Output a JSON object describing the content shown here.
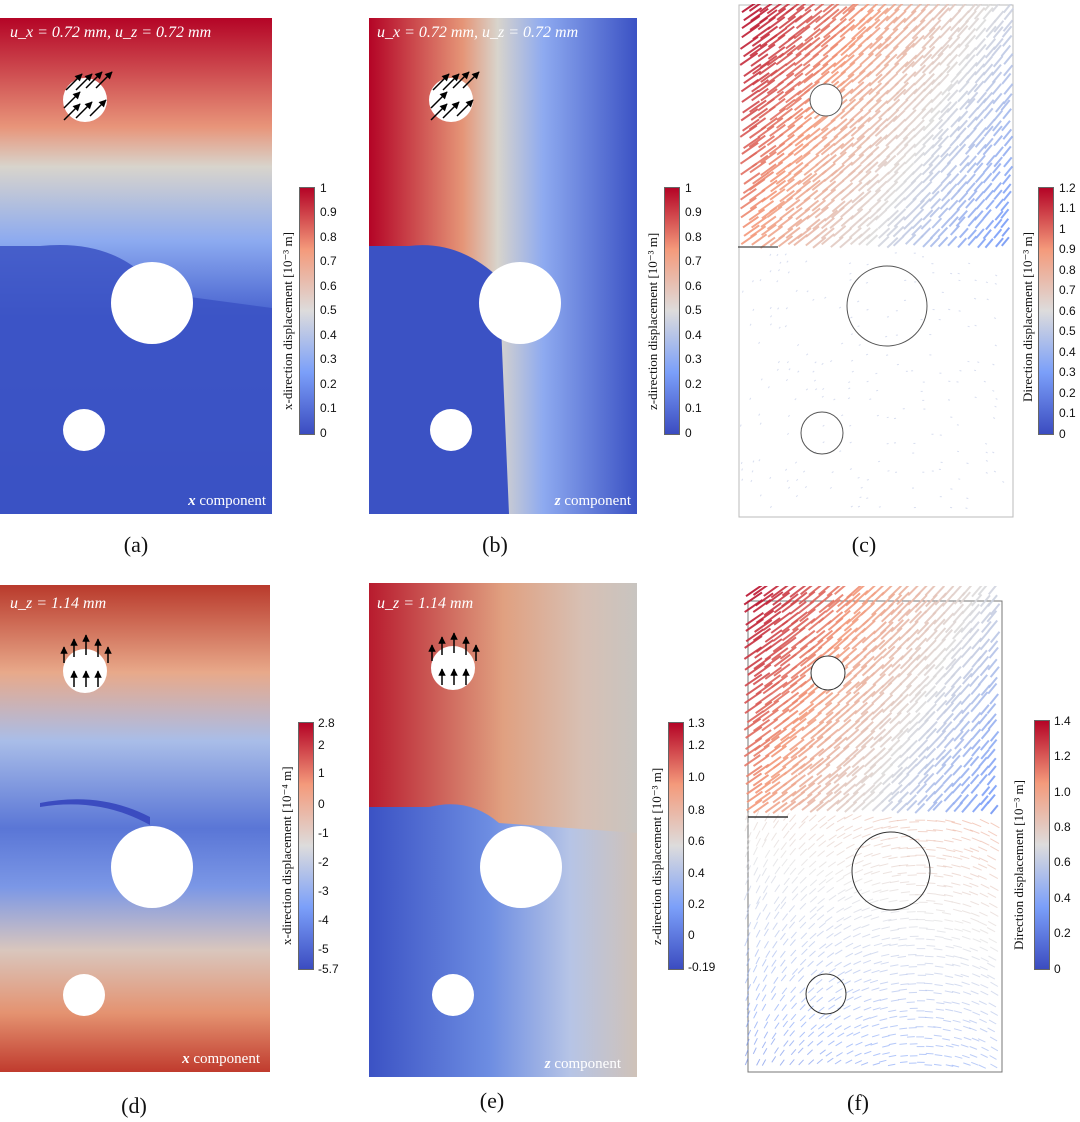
{
  "figure": {
    "panels": [
      {
        "id": "a",
        "label": "(a)",
        "load": "u_x = 0.72 mm, u_z = 0.72 mm",
        "component": "x",
        "component_suffix": "component",
        "colorbar": {
          "title": "x-direction displacement [10⁻³ m]",
          "ticks": [
            "1",
            "0.9",
            "0.8",
            "0.7",
            "0.6",
            "0.5",
            "0.4",
            "0.3",
            "0.2",
            "0.1",
            "0"
          ]
        }
      },
      {
        "id": "b",
        "label": "(b)",
        "load": "u_x = 0.72 mm, u_z = 0.72 mm",
        "component": "z",
        "component_suffix": "component",
        "colorbar": {
          "title": "z-direction displacement [10⁻³ m]",
          "ticks": [
            "1",
            "0.9",
            "0.8",
            "0.7",
            "0.6",
            "0.5",
            "0.4",
            "0.3",
            "0.2",
            "0.1",
            "0"
          ]
        }
      },
      {
        "id": "c",
        "label": "(c)",
        "colorbar": {
          "title": "Direction displacement [10⁻³ m]",
          "ticks": [
            "1.2",
            "1.1",
            "1",
            "0.9",
            "0.8",
            "0.7",
            "0.6",
            "0.5",
            "0.4",
            "0.3",
            "0.2",
            "0.1",
            "0"
          ]
        }
      },
      {
        "id": "d",
        "label": "(d)",
        "load": "u_z = 1.14 mm",
        "component": "x",
        "component_suffix": "component",
        "colorbar": {
          "title": "x-direction displacement [10⁻⁴ m]",
          "ticks": [
            "2.8",
            "2",
            "1",
            "0",
            "-1",
            "-2",
            "-3",
            "-4",
            "-5",
            "-5.7"
          ]
        }
      },
      {
        "id": "e",
        "label": "(e)",
        "load": "u_z = 1.14 mm",
        "component": "z",
        "component_suffix": "component",
        "colorbar": {
          "title": "z-direction displacement [10⁻³ m]",
          "ticks": [
            "1.3",
            "1.2",
            "1.0",
            "0.8",
            "0.6",
            "0.4",
            "0.2",
            "0",
            "-0.19"
          ]
        }
      },
      {
        "id": "f",
        "label": "(f)",
        "colorbar": {
          "title": "Direction displacement [10⁻³ m]",
          "ticks": [
            "1.4",
            "1.2",
            "1.0",
            "0.8",
            "0.6",
            "0.4",
            "0.2",
            "0"
          ]
        }
      }
    ],
    "colors": {
      "high": "#b40426",
      "mid": "#dddddd",
      "low": "#3b4cc0"
    }
  }
}
